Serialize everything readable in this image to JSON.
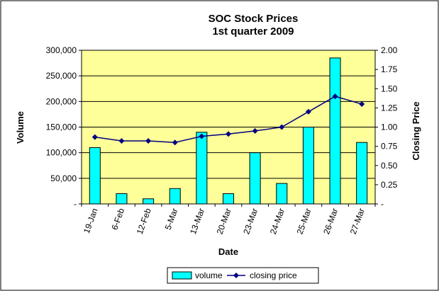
{
  "chart_data": {
    "type": "bar",
    "title": "SOC Stock Prices",
    "subtitle": "1st quarter 2009",
    "xlabel": "Date",
    "ylabel": "Volume",
    "y2label": "Closing Price",
    "categories": [
      "19-Jan",
      "6-Feb",
      "12-Feb",
      "5-Mar",
      "13-Mar",
      "20-Mar",
      "23-Mar",
      "24-Mar",
      "25-Mar",
      "26-Mar",
      "27-Mar"
    ],
    "ylim": [
      0,
      300000
    ],
    "y2lim": [
      0,
      2.0
    ],
    "yticks": [
      {
        "v": 0,
        "label": "-"
      },
      {
        "v": 50000,
        "label": "50,000"
      },
      {
        "v": 100000,
        "label": "100,000"
      },
      {
        "v": 150000,
        "label": "150,000"
      },
      {
        "v": 200000,
        "label": "200,000"
      },
      {
        "v": 250000,
        "label": "250,000"
      },
      {
        "v": 300000,
        "label": "300,000"
      }
    ],
    "y2ticks": [
      {
        "v": 0,
        "label": "-"
      },
      {
        "v": 0.25,
        "label": "0.25"
      },
      {
        "v": 0.5,
        "label": "0.50"
      },
      {
        "v": 0.75,
        "label": "0.75"
      },
      {
        "v": 1.0,
        "label": "1.00"
      },
      {
        "v": 1.25,
        "label": "1.25"
      },
      {
        "v": 1.5,
        "label": "1.50"
      },
      {
        "v": 1.75,
        "label": "1.75"
      },
      {
        "v": 2.0,
        "label": "2.00"
      }
    ],
    "series": [
      {
        "name": "volume",
        "kind": "bar",
        "axis": "left",
        "color": "#00FFFF",
        "values": [
          110000,
          20000,
          10000,
          30000,
          140000,
          20000,
          100000,
          40000,
          150000,
          285000,
          120000
        ]
      },
      {
        "name": "closing price",
        "kind": "line",
        "axis": "right",
        "color": "#000080",
        "values": [
          0.87,
          0.82,
          0.82,
          0.8,
          0.88,
          0.91,
          0.95,
          1.0,
          1.2,
          1.4,
          1.3
        ]
      }
    ],
    "legend_position": "bottom",
    "plot_background": "#FFFF99",
    "grid": "horizontal"
  }
}
